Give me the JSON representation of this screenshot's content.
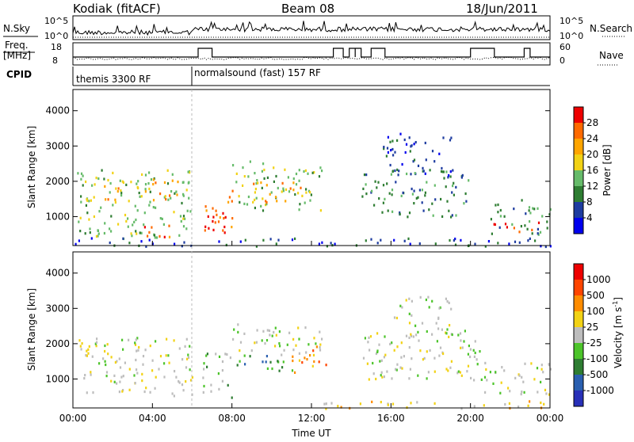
{
  "header": {
    "station": "Kodiak (fitACF)",
    "beam": "Beam 08",
    "date": "18/Jun/2011"
  },
  "strips": {
    "nsky_label": "N.Sky",
    "nsky_ticks": [
      "10^5",
      "10^0"
    ],
    "nsearch_label": "N.Search",
    "nsearch_ticks": [
      "10^5",
      "10^0"
    ],
    "freq_label": "Freq.",
    "freq_unit": "[MHz]",
    "freq_ticks": [
      "18",
      "8"
    ],
    "nave_label": "Nave",
    "nave_ticks": [
      "60",
      "0"
    ],
    "cpid_label": "CPID",
    "cpid_modes": [
      {
        "name": "themis 3300 RF",
        "start": 0,
        "end": 6
      },
      {
        "name": "normalsound (fast) 157 RF",
        "start": 6,
        "end": 24
      }
    ],
    "freq_steps": [
      {
        "start": 6.3,
        "end": 7.0
      },
      {
        "start": 13.1,
        "end": 13.6
      },
      {
        "start": 13.9,
        "end": 14.2
      },
      {
        "start": 14.2,
        "end": 14.5
      },
      {
        "start": 15.0,
        "end": 15.7
      },
      {
        "start": 20.0,
        "end": 21.2
      },
      {
        "start": 22.7,
        "end": 23.0
      }
    ]
  },
  "chart_data": [
    {
      "type": "heatmap",
      "name": "power",
      "ylabel": "Slant Range [km]",
      "ylim": [
        180,
        4600
      ],
      "xlim": [
        0,
        24
      ],
      "yticks": [
        "1000",
        "2000",
        "3000",
        "4000"
      ],
      "colorbar_label": "Power [dB]",
      "colorbar_ticks": [
        "28",
        "24",
        "20",
        "16",
        "12",
        "8",
        "4"
      ],
      "colors": [
        "#0000ee",
        "#1e3ca0",
        "#2e7d32",
        "#66bb6a",
        "#f2d215",
        "#ffa500",
        "#ff6a00",
        "#ee0000"
      ],
      "regions": [
        {
          "t0": 0.2,
          "t1": 6.0,
          "r0": 400,
          "r1": 2400,
          "level": 3
        },
        {
          "t0": 1.5,
          "t1": 5.5,
          "r0": 1500,
          "r1": 2100,
          "level": 5
        },
        {
          "t0": 3.5,
          "t1": 5.2,
          "r0": 400,
          "r1": 800,
          "level": 6
        },
        {
          "t0": 6.5,
          "t1": 8.0,
          "r0": 500,
          "r1": 1800,
          "level": 6
        },
        {
          "t0": 7.0,
          "t1": 7.8,
          "r0": 600,
          "r1": 1200,
          "level": 7
        },
        {
          "t0": 8.0,
          "t1": 12.5,
          "r0": 1200,
          "r1": 2600,
          "level": 3
        },
        {
          "t0": 9.0,
          "t1": 11.5,
          "r0": 1400,
          "r1": 2000,
          "level": 5
        },
        {
          "t0": 14.5,
          "t1": 20.0,
          "r0": 1000,
          "r1": 2400,
          "level": 2
        },
        {
          "t0": 15.5,
          "t1": 19.0,
          "r0": 2200,
          "r1": 3400,
          "level": 1
        },
        {
          "t0": 21.0,
          "t1": 24.0,
          "r0": 500,
          "r1": 1500,
          "level": 2
        },
        {
          "t0": 21.0,
          "t1": 23.5,
          "r0": 600,
          "r1": 900,
          "level": 7
        },
        {
          "t0": 0.0,
          "t1": 24.0,
          "r0": 180,
          "r1": 420,
          "level": 1
        }
      ]
    },
    {
      "type": "heatmap",
      "name": "velocity",
      "ylabel": "Slant Range [km]",
      "xlabel": "Time UT",
      "ylim": [
        180,
        4600
      ],
      "xlim": [
        0,
        24
      ],
      "yticks": [
        "1000",
        "2000",
        "3000",
        "4000"
      ],
      "xticks": [
        "00:00",
        "04:00",
        "08:00",
        "12:00",
        "16:00",
        "20:00",
        "00:00"
      ],
      "colorbar_label": "Velocity [m s^-1]",
      "colorbar_ticks": [
        "1000",
        "500",
        "100",
        "25",
        "-25",
        "-100",
        "-500",
        "-1000"
      ],
      "colors": [
        "#2830b8",
        "#2a5fb0",
        "#2e7d32",
        "#4cc42a",
        "#bdbdbd",
        "#f2d215",
        "#ff8c00",
        "#ff4500",
        "#ee0000"
      ],
      "regions": [
        {
          "t0": 0.2,
          "t1": 6.0,
          "r0": 500,
          "r1": 2200,
          "level": 4
        },
        {
          "t0": 6.5,
          "t1": 8.0,
          "r0": 500,
          "r1": 1800,
          "level": 3
        },
        {
          "t0": 8.0,
          "t1": 11.0,
          "r0": 1200,
          "r1": 1700,
          "level": 2
        },
        {
          "t0": 11.0,
          "t1": 12.8,
          "r0": 1200,
          "r1": 2000,
          "level": 6
        },
        {
          "t0": 8.0,
          "t1": 12.5,
          "r0": 1700,
          "r1": 2600,
          "level": 4
        },
        {
          "t0": 14.5,
          "t1": 20.5,
          "r0": 1000,
          "r1": 2400,
          "level": 4
        },
        {
          "t0": 16.0,
          "t1": 19.0,
          "r0": 2200,
          "r1": 3400,
          "level": 4
        },
        {
          "t0": 20.5,
          "t1": 24.0,
          "r0": 500,
          "r1": 1500,
          "level": 4
        },
        {
          "t0": 12.0,
          "t1": 24.0,
          "r0": 180,
          "r1": 400,
          "level": 5
        }
      ]
    }
  ]
}
